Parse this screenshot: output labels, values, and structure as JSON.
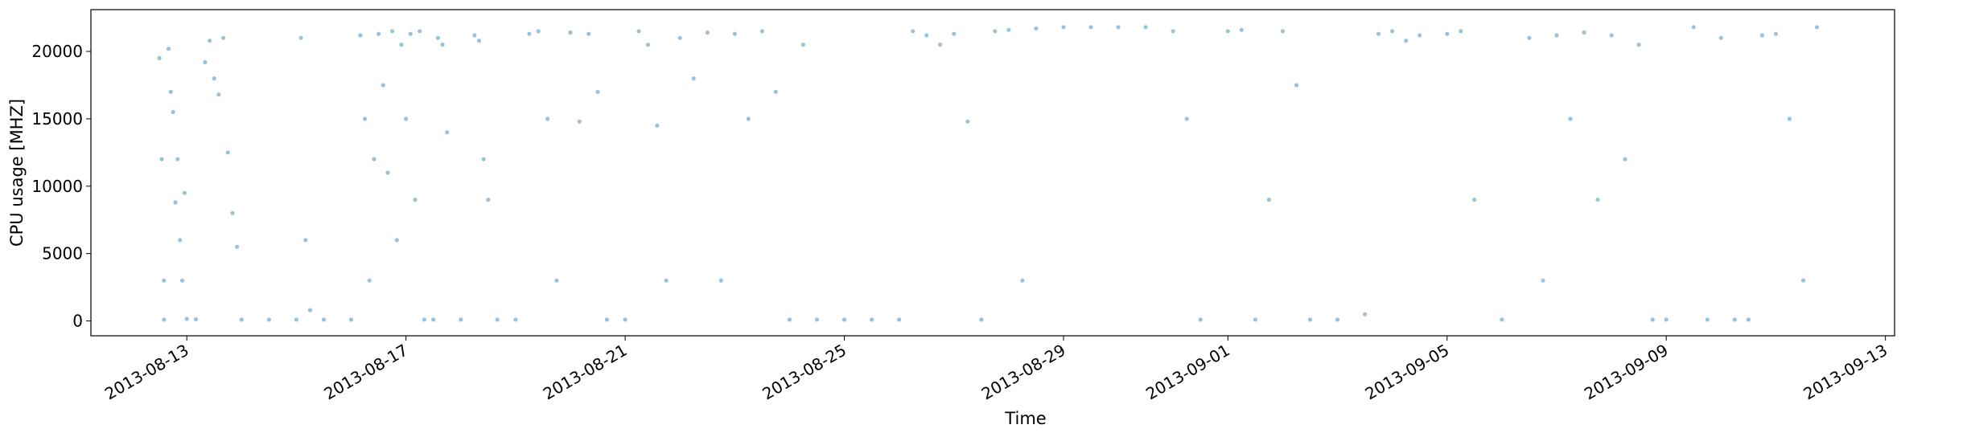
{
  "chart_data": {
    "type": "scatter",
    "xlabel": "Time",
    "ylabel": "CPU usage [MHZ]",
    "x_type": "date",
    "xlim": [
      "2013-08-11T06:00",
      "2013-09-13T04:00"
    ],
    "ylim": [
      -1100,
      23100
    ],
    "x_ticks": [
      "2013-08-13",
      "2013-08-17",
      "2013-08-21",
      "2013-08-25",
      "2013-08-29",
      "2013-09-01",
      "2013-09-05",
      "2013-09-09",
      "2013-09-13"
    ],
    "y_ticks": [
      0,
      5000,
      10000,
      15000,
      20000
    ],
    "grid": false,
    "legend": "none",
    "marker_color": "#1f77b4",
    "marker_alpha": 0.45,
    "series": [
      {
        "points": [
          [
            "2013-08-12T12:00",
            19500
          ],
          [
            "2013-08-12T13:00",
            12000
          ],
          [
            "2013-08-12T14:00",
            3000
          ],
          [
            "2013-08-12T16:00",
            20200
          ],
          [
            "2013-08-12T17:00",
            17000
          ],
          [
            "2013-08-12T18:00",
            15500
          ],
          [
            "2013-08-12T19:00",
            8800
          ],
          [
            "2013-08-12T20:00",
            12000
          ],
          [
            "2013-08-12T21:00",
            6000
          ],
          [
            "2013-08-12T22:00",
            3000
          ],
          [
            "2013-08-12T23:00",
            9500
          ],
          [
            "2013-08-12T14:00",
            100
          ],
          [
            "2013-08-13T00:00",
            150
          ],
          [
            "2013-08-13T04:00",
            120
          ],
          [
            "2013-08-13T08:00",
            19200
          ],
          [
            "2013-08-13T10:00",
            20800
          ],
          [
            "2013-08-13T12:00",
            18000
          ],
          [
            "2013-08-13T14:00",
            16800
          ],
          [
            "2013-08-13T16:00",
            21000
          ],
          [
            "2013-08-13T18:00",
            12500
          ],
          [
            "2013-08-13T20:00",
            8000
          ],
          [
            "2013-08-13T22:00",
            5500
          ],
          [
            "2013-08-14T00:00",
            100
          ],
          [
            "2013-08-14T12:00",
            100
          ],
          [
            "2013-08-15T00:00",
            100
          ],
          [
            "2013-08-15T02:00",
            21000
          ],
          [
            "2013-08-15T04:00",
            6000
          ],
          [
            "2013-08-15T06:00",
            800
          ],
          [
            "2013-08-15T12:00",
            100
          ],
          [
            "2013-08-16T00:00",
            100
          ],
          [
            "2013-08-16T04:00",
            21200
          ],
          [
            "2013-08-16T06:00",
            15000
          ],
          [
            "2013-08-16T08:00",
            3000
          ],
          [
            "2013-08-16T10:00",
            12000
          ],
          [
            "2013-08-16T12:00",
            21300
          ],
          [
            "2013-08-16T14:00",
            17500
          ],
          [
            "2013-08-16T16:00",
            11000
          ],
          [
            "2013-08-16T18:00",
            21500
          ],
          [
            "2013-08-16T20:00",
            6000
          ],
          [
            "2013-08-16T22:00",
            20500
          ],
          [
            "2013-08-17T00:00",
            15000
          ],
          [
            "2013-08-17T02:00",
            21300
          ],
          [
            "2013-08-17T04:00",
            9000
          ],
          [
            "2013-08-17T06:00",
            21500
          ],
          [
            "2013-08-17T08:00",
            100
          ],
          [
            "2013-08-17T12:00",
            100
          ],
          [
            "2013-08-17T14:00",
            21000
          ],
          [
            "2013-08-17T16:00",
            20500
          ],
          [
            "2013-08-17T18:00",
            14000
          ],
          [
            "2013-08-18T00:00",
            100
          ],
          [
            "2013-08-18T06:00",
            21200
          ],
          [
            "2013-08-18T08:00",
            20800
          ],
          [
            "2013-08-18T10:00",
            12000
          ],
          [
            "2013-08-18T12:00",
            9000
          ],
          [
            "2013-08-18T16:00",
            100
          ],
          [
            "2013-08-19T00:00",
            100
          ],
          [
            "2013-08-19T06:00",
            21300
          ],
          [
            "2013-08-19T10:00",
            21500
          ],
          [
            "2013-08-19T14:00",
            15000
          ],
          [
            "2013-08-19T18:00",
            3000
          ],
          [
            "2013-08-20T00:00",
            21400
          ],
          [
            "2013-08-20T04:00",
            14800
          ],
          [
            "2013-08-20T08:00",
            21300
          ],
          [
            "2013-08-20T12:00",
            17000
          ],
          [
            "2013-08-20T16:00",
            100
          ],
          [
            "2013-08-21T00:00",
            100
          ],
          [
            "2013-08-21T06:00",
            21500
          ],
          [
            "2013-08-21T10:00",
            20500
          ],
          [
            "2013-08-21T14:00",
            14500
          ],
          [
            "2013-08-21T18:00",
            3000
          ],
          [
            "2013-08-22T00:00",
            21000
          ],
          [
            "2013-08-22T06:00",
            18000
          ],
          [
            "2013-08-22T12:00",
            21400
          ],
          [
            "2013-08-22T18:00",
            3000
          ],
          [
            "2013-08-23T00:00",
            21300
          ],
          [
            "2013-08-23T06:00",
            15000
          ],
          [
            "2013-08-23T12:00",
            21500
          ],
          [
            "2013-08-23T18:00",
            17000
          ],
          [
            "2013-08-24T00:00",
            100
          ],
          [
            "2013-08-24T06:00",
            20500
          ],
          [
            "2013-08-24T12:00",
            100
          ],
          [
            "2013-08-25T00:00",
            100
          ],
          [
            "2013-08-25T12:00",
            100
          ],
          [
            "2013-08-26T00:00",
            100
          ],
          [
            "2013-08-26T06:00",
            21500
          ],
          [
            "2013-08-26T12:00",
            21200
          ],
          [
            "2013-08-26T18:00",
            20500
          ],
          [
            "2013-08-27T00:00",
            21300
          ],
          [
            "2013-08-27T06:00",
            14800
          ],
          [
            "2013-08-27T12:00",
            100
          ],
          [
            "2013-08-27T18:00",
            21500
          ],
          [
            "2013-08-28T00:00",
            21600
          ],
          [
            "2013-08-28T06:00",
            3000
          ],
          [
            "2013-08-28T12:00",
            21700
          ],
          [
            "2013-08-29T00:00",
            21800
          ],
          [
            "2013-08-29T12:00",
            21800
          ],
          [
            "2013-08-30T00:00",
            21800
          ],
          [
            "2013-08-30T12:00",
            21800
          ],
          [
            "2013-08-31T00:00",
            21500
          ],
          [
            "2013-08-31T06:00",
            15000
          ],
          [
            "2013-08-31T12:00",
            100
          ],
          [
            "2013-09-01T00:00",
            21500
          ],
          [
            "2013-09-01T06:00",
            21600
          ],
          [
            "2013-09-01T12:00",
            100
          ],
          [
            "2013-09-01T18:00",
            9000
          ],
          [
            "2013-09-02T00:00",
            21500
          ],
          [
            "2013-09-02T06:00",
            17500
          ],
          [
            "2013-09-02T12:00",
            100
          ],
          [
            "2013-09-03T00:00",
            100
          ],
          [
            "2013-09-03T12:00",
            500
          ],
          [
            "2013-09-03T18:00",
            21300
          ],
          [
            "2013-09-04T00:00",
            21500
          ],
          [
            "2013-09-04T06:00",
            20800
          ],
          [
            "2013-09-04T12:00",
            21200
          ],
          [
            "2013-09-05T00:00",
            21300
          ],
          [
            "2013-09-05T06:00",
            21500
          ],
          [
            "2013-09-05T12:00",
            9000
          ],
          [
            "2013-09-06T00:00",
            100
          ],
          [
            "2013-09-06T12:00",
            21000
          ],
          [
            "2013-09-06T18:00",
            3000
          ],
          [
            "2013-09-07T00:00",
            21200
          ],
          [
            "2013-09-07T06:00",
            15000
          ],
          [
            "2013-09-07T12:00",
            21400
          ],
          [
            "2013-09-07T18:00",
            9000
          ],
          [
            "2013-09-08T00:00",
            21200
          ],
          [
            "2013-09-08T06:00",
            12000
          ],
          [
            "2013-09-08T12:00",
            20500
          ],
          [
            "2013-09-08T18:00",
            100
          ],
          [
            "2013-09-09T00:00",
            100
          ],
          [
            "2013-09-09T12:00",
            21800
          ],
          [
            "2013-09-09T18:00",
            100
          ],
          [
            "2013-09-10T00:00",
            21000
          ],
          [
            "2013-09-10T06:00",
            100
          ],
          [
            "2013-09-10T12:00",
            100
          ],
          [
            "2013-09-10T18:00",
            21200
          ],
          [
            "2013-09-11T00:00",
            21300
          ],
          [
            "2013-09-11T06:00",
            15000
          ],
          [
            "2013-09-11T12:00",
            3000
          ],
          [
            "2013-09-11T18:00",
            21800
          ]
        ]
      }
    ]
  }
}
